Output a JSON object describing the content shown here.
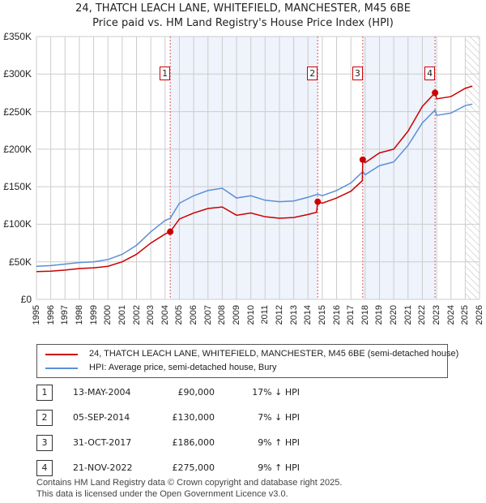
{
  "chart_data": {
    "type": "line",
    "title": "24, THATCH LEACH LANE, WHITEFIELD, MANCHESTER, M45 6BE",
    "subtitle": "Price paid vs. HM Land Registry's House Price Index (HPI)",
    "xlim": [
      1995,
      2026
    ],
    "ylim": [
      0,
      350000
    ],
    "y_ticks": [
      0,
      50000,
      100000,
      150000,
      200000,
      250000,
      300000,
      350000
    ],
    "y_tick_labels": [
      "£0",
      "£50K",
      "£100K",
      "£150K",
      "£200K",
      "£250K",
      "£300K",
      "£350K"
    ],
    "x_ticks": [
      1995,
      1996,
      1997,
      1998,
      1999,
      2000,
      2001,
      2002,
      2003,
      2004,
      2005,
      2006,
      2007,
      2008,
      2009,
      2010,
      2011,
      2012,
      2013,
      2014,
      2015,
      2016,
      2017,
      2018,
      2019,
      2020,
      2021,
      2022,
      2023,
      2024,
      2025,
      2026
    ],
    "grid": true,
    "series": [
      {
        "name": "24, THATCH LEACH LANE, WHITEFIELD, MANCHESTER, M45 6BE (semi-detached house)",
        "color": "#cc0000",
        "x": [
          1995,
          1996,
          1997,
          1998,
          1999,
          2000,
          2001,
          2002,
          2003,
          2004,
          2004.36,
          2005,
          2006,
          2007,
          2008,
          2009,
          2010,
          2011,
          2012,
          2013,
          2014,
          2014.6,
          2014.68,
          2015,
          2016,
          2017,
          2017.8,
          2017.83,
          2018,
          2019,
          2020,
          2021,
          2022,
          2022.89,
          2023,
          2024,
          2025,
          2025.5
        ],
        "y": [
          37000,
          37500,
          39000,
          41000,
          42000,
          44000,
          50000,
          60000,
          75000,
          87000,
          90000,
          107000,
          115000,
          121000,
          123000,
          112000,
          115000,
          110000,
          108000,
          109000,
          113000,
          116000,
          130000,
          128000,
          135000,
          144000,
          158000,
          186000,
          182000,
          195000,
          200000,
          224000,
          257000,
          275000,
          267000,
          270000,
          281000,
          284000
        ]
      },
      {
        "name": "HPI: Average price, semi-detached house, Bury",
        "color": "#5b8fd6",
        "x": [
          1995,
          1996,
          1997,
          1998,
          1999,
          2000,
          2001,
          2002,
          2003,
          2004,
          2004.36,
          2005,
          2006,
          2007,
          2008,
          2009,
          2010,
          2011,
          2012,
          2013,
          2014,
          2014.68,
          2015,
          2016,
          2017,
          2017.83,
          2018,
          2019,
          2020,
          2021,
          2022,
          2022.89,
          2023,
          2024,
          2025,
          2025.5
        ],
        "y": [
          44000,
          45000,
          47000,
          49000,
          50000,
          53000,
          60000,
          72000,
          90000,
          105000,
          108000,
          128000,
          138000,
          145000,
          148000,
          135000,
          138000,
          132000,
          130000,
          131000,
          136000,
          140000,
          138000,
          145000,
          155000,
          170000,
          166000,
          178000,
          183000,
          205000,
          235000,
          252000,
          245000,
          248000,
          258000,
          260000
        ]
      }
    ],
    "sales": [
      {
        "n": "1",
        "date": "13-MAY-2004",
        "x": 2004.36,
        "price": "£90,000",
        "value": 90000,
        "hpi": "17% ↓ HPI"
      },
      {
        "n": "2",
        "date": "05-SEP-2014",
        "x": 2014.68,
        "price": "£130,000",
        "value": 130000,
        "hpi": "7% ↓ HPI"
      },
      {
        "n": "3",
        "date": "31-OCT-2017",
        "x": 2017.83,
        "price": "£186,000",
        "value": 186000,
        "hpi": "9% ↑ HPI"
      },
      {
        "n": "4",
        "date": "21-NOV-2022",
        "x": 2022.89,
        "price": "£275,000",
        "value": 275000,
        "hpi": "9% ↑ HPI"
      }
    ],
    "shaded": [
      [
        2004.36,
        2014.68
      ],
      [
        2017.83,
        2022.89
      ]
    ],
    "forecast_start": 2025.0
  },
  "footer": {
    "line1": "Contains HM Land Registry data © Crown copyright and database right 2025.",
    "line2": "This data is licensed under the Open Government Licence v3.0."
  }
}
